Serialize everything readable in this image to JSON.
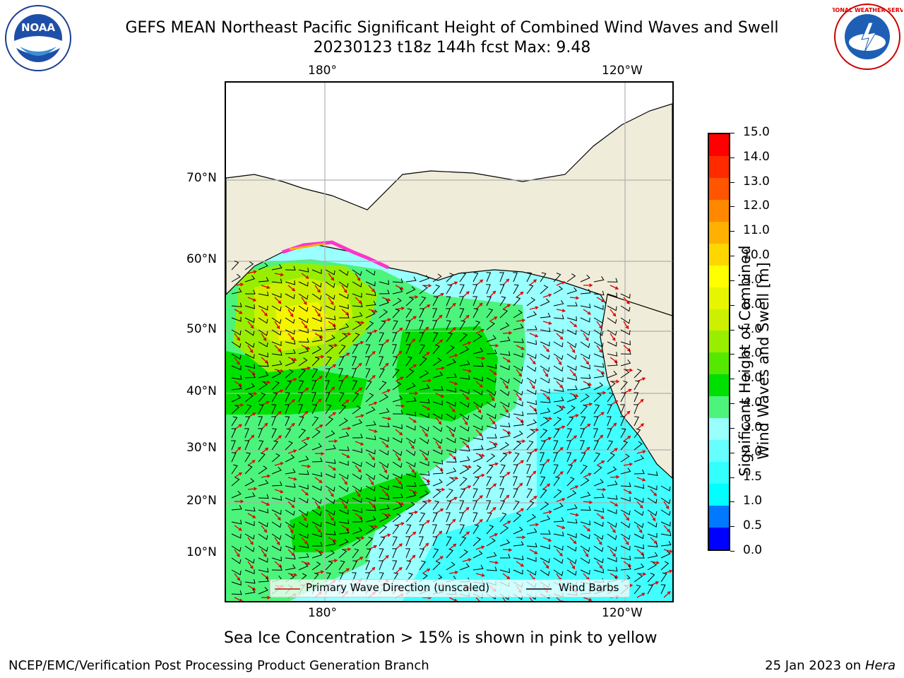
{
  "header": {
    "title_line1": "GEFS MEAN Northeast Pacific Significant Height of Combined Wind Waves and Swell",
    "title_line2": "20230123 t18z 144h fcst   Max: 9.48"
  },
  "logos": {
    "left": {
      "text": "NOAA",
      "name": "noaa-logo"
    },
    "right": {
      "text": "NATIONAL WEATHER SERVICE",
      "name": "nws-logo"
    }
  },
  "map": {
    "top_lon_labels": [
      "180°",
      "120°W"
    ],
    "bottom_lon_labels": [
      "180°",
      "120°W"
    ],
    "lat_labels": [
      "70°N",
      "60°N",
      "50°N",
      "40°N",
      "30°N",
      "20°N",
      "10°N"
    ],
    "colors": {
      "land": "#efecd9",
      "ocean_low": "#99ffff",
      "ocean_mid": "#33ffff",
      "green_light": "#4cf47c",
      "green": "#00e000",
      "green_yellow": "#7fe800",
      "yellow_green": "#ccf000",
      "yellow": "#f5f500",
      "ice_pink": "#ff33cc",
      "wave_arrow": "#e00000",
      "wind_barb": "#000000",
      "grid": "#b0b0b0"
    }
  },
  "legend": {
    "wave_label": "Primary Wave Direction (unscaled)",
    "wind_label": "Wind Barbs"
  },
  "colorbar": {
    "title_line1": "Significant Height of Combined",
    "title_line2": "Wind Waves and Swell [m]",
    "ticks": [
      "0.0",
      "0.5",
      "1.0",
      "1.5",
      "2.0",
      "3.0",
      "4.0",
      "5.0",
      "6.0",
      "7.0",
      "8.0",
      "9.0",
      "10.0",
      "11.0",
      "12.0",
      "13.0",
      "14.0",
      "15.0"
    ],
    "segment_colors": [
      "#0000ff",
      "#0078ff",
      "#00ffff",
      "#33ffff",
      "#66ffff",
      "#99ffff",
      "#4cf47c",
      "#00e000",
      "#55e800",
      "#99ee00",
      "#ccf000",
      "#e8f500",
      "#ffff00",
      "#ffd700",
      "#ffb000",
      "#ff8800",
      "#ff5500",
      "#ff2a00",
      "#ff0000"
    ]
  },
  "notes": {
    "sea_ice": "Sea Ice Concentration > 15% is shown in pink to yellow"
  },
  "footer": {
    "left": "NCEP/EMC/Verification Post Processing Product Generation Branch",
    "right_prefix": "25 Jan 2023 on ",
    "right_machine": "Hera"
  }
}
